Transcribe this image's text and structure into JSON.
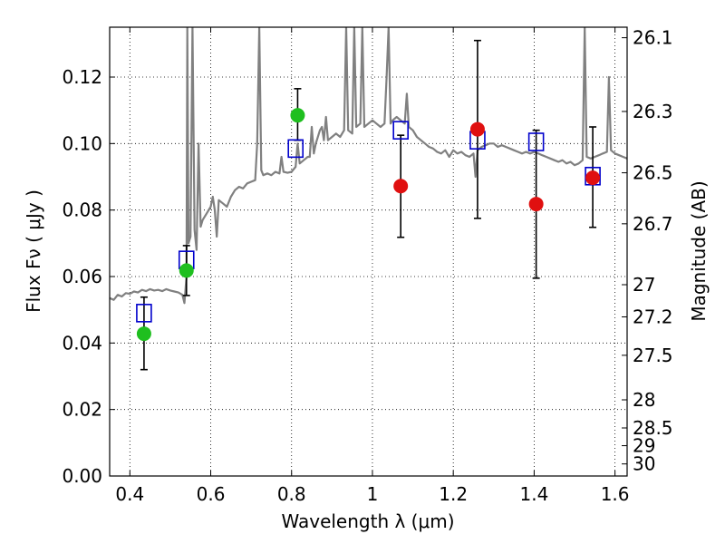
{
  "chart_data": {
    "type": "scatter",
    "xlabel": "Wavelength  λ (μm)",
    "ylabel": "Flux  Fν  ( μJy )",
    "ylabel_right": "Magnitude (AB)",
    "xlim": [
      0.35,
      1.63
    ],
    "ylim": [
      0.0,
      0.135
    ],
    "grid": true,
    "x_ticks": [
      {
        "value": 0.4,
        "label": "0.4"
      },
      {
        "value": 0.6,
        "label": "0.6"
      },
      {
        "value": 0.8,
        "label": "0.8"
      },
      {
        "value": 1.0,
        "label": "1"
      },
      {
        "value": 1.2,
        "label": "1.2"
      },
      {
        "value": 1.4,
        "label": "1.4"
      },
      {
        "value": 1.6,
        "label": "1.6"
      }
    ],
    "y_ticks": [
      {
        "value": 0.0,
        "label": "0.00"
      },
      {
        "value": 0.02,
        "label": "0.02"
      },
      {
        "value": 0.04,
        "label": "0.04"
      },
      {
        "value": 0.06,
        "label": "0.06"
      },
      {
        "value": 0.08,
        "label": "0.08"
      },
      {
        "value": 0.1,
        "label": "0.10"
      },
      {
        "value": 0.12,
        "label": "0.12"
      }
    ],
    "right_ticks": [
      {
        "mag": 26.1,
        "label": "26.1"
      },
      {
        "mag": 26.3,
        "label": "26.3"
      },
      {
        "mag": 26.5,
        "label": "26.5"
      },
      {
        "mag": 26.7,
        "label": "26.7"
      },
      {
        "mag": 27.0,
        "label": "27"
      },
      {
        "mag": 27.2,
        "label": "27.2"
      },
      {
        "mag": 27.5,
        "label": "27.5"
      },
      {
        "mag": 28.0,
        "label": "28"
      },
      {
        "mag": 28.5,
        "label": "28.5"
      },
      {
        "mag": 29.0,
        "label": "29"
      },
      {
        "mag": 30.0,
        "label": "30"
      }
    ],
    "series": [
      {
        "name": "template-spectrum",
        "kind": "line",
        "color": "#808080",
        "points": [
          [
            0.35,
            0.0535
          ],
          [
            0.36,
            0.053
          ],
          [
            0.37,
            0.0545
          ],
          [
            0.38,
            0.054
          ],
          [
            0.39,
            0.055
          ],
          [
            0.4,
            0.0548
          ],
          [
            0.41,
            0.0555
          ],
          [
            0.42,
            0.0552
          ],
          [
            0.43,
            0.056
          ],
          [
            0.44,
            0.0556
          ],
          [
            0.45,
            0.0562
          ],
          [
            0.46,
            0.0558
          ],
          [
            0.47,
            0.056
          ],
          [
            0.48,
            0.0556
          ],
          [
            0.49,
            0.0562
          ],
          [
            0.5,
            0.0558
          ],
          [
            0.51,
            0.0555
          ],
          [
            0.52,
            0.0552
          ],
          [
            0.53,
            0.0545
          ],
          [
            0.535,
            0.052
          ],
          [
            0.54,
            0.06
          ],
          [
            0.542,
            0.135
          ],
          [
            0.545,
            0.07
          ],
          [
            0.55,
            0.072
          ],
          [
            0.555,
            0.135
          ],
          [
            0.56,
            0.074
          ],
          [
            0.565,
            0.068
          ],
          [
            0.57,
            0.1
          ],
          [
            0.575,
            0.075
          ],
          [
            0.58,
            0.077
          ],
          [
            0.59,
            0.079
          ],
          [
            0.6,
            0.081
          ],
          [
            0.605,
            0.084
          ],
          [
            0.61,
            0.08
          ],
          [
            0.615,
            0.072
          ],
          [
            0.62,
            0.083
          ],
          [
            0.63,
            0.082
          ],
          [
            0.64,
            0.081
          ],
          [
            0.65,
            0.084
          ],
          [
            0.66,
            0.086
          ],
          [
            0.67,
            0.087
          ],
          [
            0.68,
            0.0865
          ],
          [
            0.69,
            0.088
          ],
          [
            0.7,
            0.0885
          ],
          [
            0.71,
            0.089
          ],
          [
            0.715,
            0.1
          ],
          [
            0.72,
            0.135
          ],
          [
            0.725,
            0.092
          ],
          [
            0.73,
            0.0905
          ],
          [
            0.74,
            0.091
          ],
          [
            0.75,
            0.0905
          ],
          [
            0.76,
            0.0915
          ],
          [
            0.77,
            0.091
          ],
          [
            0.775,
            0.096
          ],
          [
            0.78,
            0.0915
          ],
          [
            0.79,
            0.0912
          ],
          [
            0.8,
            0.0915
          ],
          [
            0.81,
            0.093
          ],
          [
            0.815,
            0.1
          ],
          [
            0.82,
            0.094
          ],
          [
            0.83,
            0.095
          ],
          [
            0.84,
            0.096
          ],
          [
            0.845,
            0.096
          ],
          [
            0.85,
            0.105
          ],
          [
            0.855,
            0.097
          ],
          [
            0.86,
            0.1
          ],
          [
            0.87,
            0.104
          ],
          [
            0.875,
            0.105
          ],
          [
            0.88,
            0.101
          ],
          [
            0.885,
            0.108
          ],
          [
            0.89,
            0.101
          ],
          [
            0.9,
            0.102
          ],
          [
            0.91,
            0.103
          ],
          [
            0.92,
            0.102
          ],
          [
            0.93,
            0.104
          ],
          [
            0.935,
            0.135
          ],
          [
            0.94,
            0.104
          ],
          [
            0.95,
            0.103
          ],
          [
            0.955,
            0.135
          ],
          [
            0.96,
            0.105
          ],
          [
            0.97,
            0.106
          ],
          [
            0.975,
            0.135
          ],
          [
            0.98,
            0.105
          ],
          [
            0.99,
            0.106
          ],
          [
            1.0,
            0.107
          ],
          [
            1.01,
            0.106
          ],
          [
            1.02,
            0.105
          ],
          [
            1.03,
            0.106
          ],
          [
            1.035,
            0.12
          ],
          [
            1.04,
            0.135
          ],
          [
            1.045,
            0.106
          ],
          [
            1.05,
            0.107
          ],
          [
            1.06,
            0.108
          ],
          [
            1.07,
            0.107
          ],
          [
            1.08,
            0.106
          ],
          [
            1.085,
            0.115
          ],
          [
            1.09,
            0.105
          ],
          [
            1.1,
            0.104
          ],
          [
            1.11,
            0.102
          ],
          [
            1.12,
            0.101
          ],
          [
            1.13,
            0.1
          ],
          [
            1.14,
            0.099
          ],
          [
            1.15,
            0.0985
          ],
          [
            1.16,
            0.0975
          ],
          [
            1.17,
            0.097
          ],
          [
            1.18,
            0.098
          ],
          [
            1.19,
            0.096
          ],
          [
            1.2,
            0.098
          ],
          [
            1.21,
            0.097
          ],
          [
            1.22,
            0.0975
          ],
          [
            1.23,
            0.0965
          ],
          [
            1.24,
            0.096
          ],
          [
            1.25,
            0.097
          ],
          [
            1.255,
            0.09
          ],
          [
            1.26,
            0.098
          ],
          [
            1.27,
            0.099
          ],
          [
            1.28,
            0.0995
          ],
          [
            1.29,
            0.1
          ],
          [
            1.3,
            0.1
          ],
          [
            1.31,
            0.099
          ],
          [
            1.32,
            0.0995
          ],
          [
            1.33,
            0.099
          ],
          [
            1.34,
            0.0985
          ],
          [
            1.35,
            0.098
          ],
          [
            1.36,
            0.0975
          ],
          [
            1.37,
            0.097
          ],
          [
            1.38,
            0.0975
          ],
          [
            1.39,
            0.097
          ],
          [
            1.4,
            0.0975
          ],
          [
            1.41,
            0.097
          ],
          [
            1.42,
            0.0965
          ],
          [
            1.43,
            0.096
          ],
          [
            1.44,
            0.0955
          ],
          [
            1.45,
            0.095
          ],
          [
            1.46,
            0.0945
          ],
          [
            1.47,
            0.095
          ],
          [
            1.48,
            0.094
          ],
          [
            1.49,
            0.0945
          ],
          [
            1.5,
            0.0935
          ],
          [
            1.51,
            0.094
          ],
          [
            1.52,
            0.095
          ],
          [
            1.525,
            0.135
          ],
          [
            1.53,
            0.096
          ],
          [
            1.54,
            0.0955
          ],
          [
            1.55,
            0.096
          ],
          [
            1.56,
            0.0965
          ],
          [
            1.57,
            0.097
          ],
          [
            1.58,
            0.0975
          ],
          [
            1.585,
            0.12
          ],
          [
            1.59,
            0.098
          ],
          [
            1.6,
            0.097
          ],
          [
            1.61,
            0.0965
          ],
          [
            1.62,
            0.096
          ],
          [
            1.63,
            0.0955
          ]
        ]
      },
      {
        "name": "model-photometry",
        "kind": "open-square",
        "color": "#0000cc",
        "points": [
          [
            0.435,
            0.049
          ],
          [
            0.54,
            0.065
          ],
          [
            0.81,
            0.0985
          ],
          [
            1.07,
            0.104
          ],
          [
            1.26,
            0.101
          ],
          [
            1.405,
            0.1005
          ],
          [
            1.545,
            0.0902
          ]
        ]
      },
      {
        "name": "green-detections",
        "kind": "filled-circle",
        "color": "#1fbf1f",
        "points": [
          [
            0.435,
            0.0428
          ],
          [
            0.54,
            0.0618
          ],
          [
            0.815,
            0.1085
          ]
        ]
      },
      {
        "name": "red-detections",
        "kind": "filled-circle",
        "color": "#e01010",
        "points": [
          [
            1.07,
            0.0872
          ],
          [
            1.26,
            0.1043
          ],
          [
            1.405,
            0.0818
          ],
          [
            1.545,
            0.0897
          ]
        ]
      }
    ],
    "error_bars": [
      {
        "x": 0.435,
        "low": 0.032,
        "high": 0.0538
      },
      {
        "x": 0.54,
        "low": 0.0543,
        "high": 0.0693
      },
      {
        "x": 0.815,
        "low": 0.101,
        "high": 0.1165
      },
      {
        "x": 1.07,
        "low": 0.0718,
        "high": 0.1025
      },
      {
        "x": 1.26,
        "low": 0.0775,
        "high": 0.131
      },
      {
        "x": 1.405,
        "low": 0.0595,
        "high": 0.104
      },
      {
        "x": 1.545,
        "low": 0.0748,
        "high": 0.105
      }
    ]
  }
}
